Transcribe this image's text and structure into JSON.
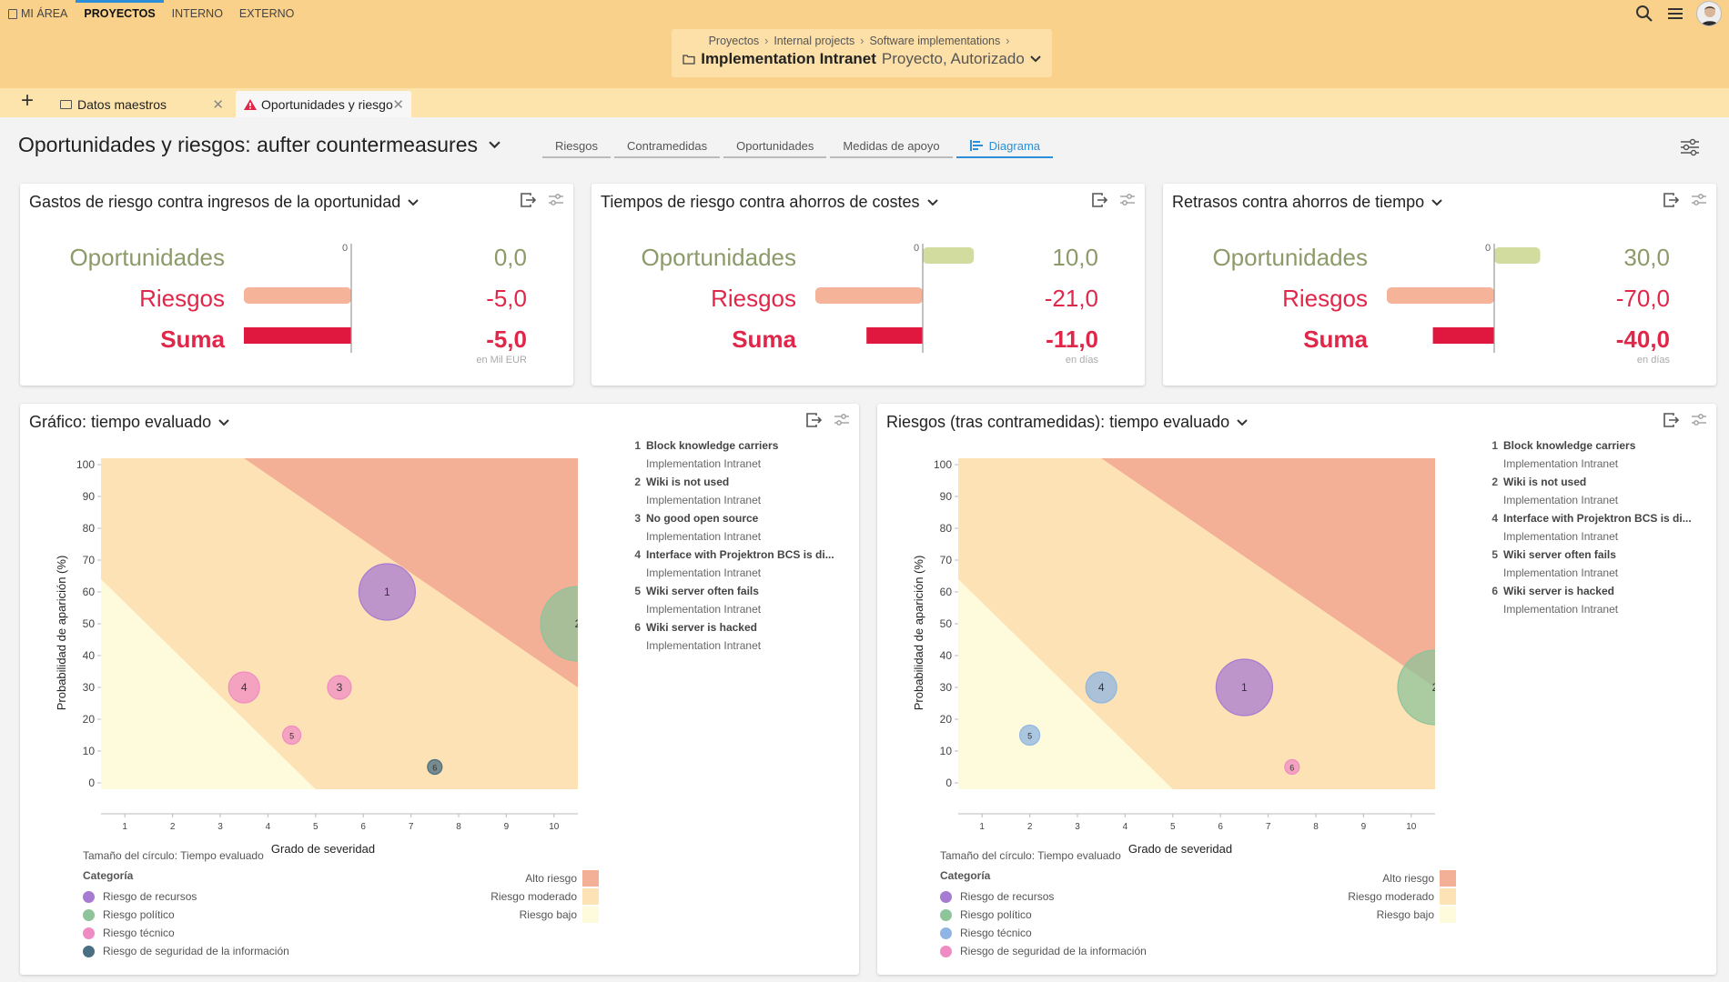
{
  "nav": {
    "items": [
      {
        "label": "MI ÁREA",
        "active": false
      },
      {
        "label": "PROYECTOS",
        "active": true
      },
      {
        "label": "INTERNO",
        "active": false
      },
      {
        "label": "EXTERNO",
        "active": false
      }
    ]
  },
  "context": {
    "breadcrumbs": [
      "Proyectos",
      "Internal projects",
      "Software implementations"
    ],
    "title": "Implementation Intranet",
    "subtitle": "Proyecto, Autorizado"
  },
  "doc_tabs": [
    {
      "label": "Datos maestros"
    },
    {
      "label": "Oportunidades y riesgo"
    }
  ],
  "page": {
    "title": "Oportunidades y riesgos: aufter countermeasures",
    "subtabs": [
      "Riesgos",
      "Contramedidas",
      "Oportunidades",
      "Medidas de apoyo",
      "Diagrama"
    ],
    "active_subtab": "Diagrama"
  },
  "colors": {
    "topbar": "#fad18a",
    "accent": "#2a8fd8",
    "opp": "#8c9a6a",
    "risk": "#e0274a",
    "opp_bar": "#d2dc9e",
    "risk_bar": "#f5b39a",
    "sum_bar": "#e0183f",
    "high": "#f3b096",
    "moderate": "#fde2b6",
    "low": "#fefadc"
  },
  "kpis": [
    {
      "title": "Gastos de riesgo contra ingresos de la oportunidad",
      "labels": {
        "opp": "Oportunidades",
        "risk": "Riesgos",
        "sum": "Suma"
      },
      "zero_label": "0",
      "values": {
        "opp": "0,0",
        "risk": "-5,0",
        "sum": "-5,0"
      },
      "numbers": {
        "opp": 0,
        "risk": -5,
        "sum": -5,
        "max": 5
      },
      "unit": "en Mil EUR"
    },
    {
      "title": "Tiempos de riesgo contra ahorros de costes",
      "labels": {
        "opp": "Oportunidades",
        "risk": "Riesgos",
        "sum": "Suma"
      },
      "zero_label": "0",
      "values": {
        "opp": "10,0",
        "risk": "-21,0",
        "sum": "-11,0"
      },
      "numbers": {
        "opp": 10,
        "risk": -21,
        "sum": -11,
        "max": 21
      },
      "unit": "en días"
    },
    {
      "title": "Retrasos contra ahorros de tiempo",
      "labels": {
        "opp": "Oportunidades",
        "risk": "Riesgos",
        "sum": "Suma"
      },
      "zero_label": "0",
      "values": {
        "opp": "30,0",
        "risk": "-70,0",
        "sum": "-40,0"
      },
      "numbers": {
        "opp": 30,
        "risk": -70,
        "sum": -40,
        "max": 70
      },
      "unit": "en días"
    }
  ],
  "charts": [
    {
      "title": "Gráfico: tiempo evaluado",
      "list": [
        {
          "num": "1",
          "name": "Block knowledge carriers",
          "sub": "Implementation Intranet"
        },
        {
          "num": "2",
          "name": "Wiki is not used",
          "sub": "Implementation Intranet"
        },
        {
          "num": "3",
          "name": "No good open source",
          "sub": "Implementation Intranet"
        },
        {
          "num": "4",
          "name": "Interface with Projektron BCS is di...",
          "sub": "Implementation Intranet"
        },
        {
          "num": "5",
          "name": "Wiki server often fails",
          "sub": "Implementation Intranet"
        },
        {
          "num": "6",
          "name": "Wiki server is hacked",
          "sub": "Implementation Intranet"
        }
      ],
      "legend": {
        "circle_note": "Tamaño del círculo: Tiempo evaluado",
        "category_header": "Categoría",
        "categories": [
          {
            "name": "Riesgo de recursos",
            "color": "#a77bd1"
          },
          {
            "name": "Riesgo político",
            "color": "#8fc39a"
          },
          {
            "name": "Riesgo técnico",
            "color": "#ef8cc3"
          },
          {
            "name": "Riesgo de seguridad de la información",
            "color": "#4a6e82"
          }
        ],
        "risk_levels": [
          {
            "name": "Alto riesgo",
            "color": "#f3b096"
          },
          {
            "name": "Riesgo moderado",
            "color": "#fde2b6"
          },
          {
            "name": "Riesgo bajo",
            "color": "#fefadc"
          }
        ]
      },
      "chart_data": {
        "type": "scatter",
        "xlabel": "Grado de severidad",
        "ylabel": "Probabilidad de aparición (%)",
        "xticks": [
          1,
          2,
          3,
          4,
          5,
          6,
          7,
          8,
          9,
          10
        ],
        "yticks": [
          0,
          10,
          20,
          30,
          40,
          50,
          60,
          70,
          80,
          90,
          100
        ],
        "xlim": [
          0,
          10
        ],
        "ylim": [
          -2,
          102
        ],
        "points": [
          {
            "label": "1",
            "x": 6,
            "y": 60,
            "r": 31,
            "color": "#a77bd1"
          },
          {
            "label": "2",
            "x": 10,
            "y": 50,
            "r": 41,
            "color": "#8fc39a"
          },
          {
            "label": "3",
            "x": 5,
            "y": 30,
            "r": 13,
            "color": "#ef8cc3"
          },
          {
            "label": "4",
            "x": 3,
            "y": 30,
            "r": 17,
            "color": "#ef8cc3"
          },
          {
            "label": "5",
            "x": 4,
            "y": 15,
            "r": 10,
            "color": "#ef8cc3"
          },
          {
            "label": "6",
            "x": 7,
            "y": 5,
            "r": 8,
            "color": "#4a6e82"
          }
        ]
      }
    },
    {
      "title": "Riesgos (tras contramedidas): tiempo evaluado",
      "list": [
        {
          "num": "1",
          "name": "Block knowledge carriers",
          "sub": "Implementation Intranet"
        },
        {
          "num": "2",
          "name": "Wiki is not used",
          "sub": "Implementation Intranet"
        },
        {
          "num": "4",
          "name": "Interface with Projektron BCS is di...",
          "sub": "Implementation Intranet"
        },
        {
          "num": "5",
          "name": "Wiki server often fails",
          "sub": "Implementation Intranet"
        },
        {
          "num": "6",
          "name": "Wiki server is hacked",
          "sub": "Implementation Intranet"
        }
      ],
      "legend": {
        "circle_note": "Tamaño del círculo: Tiempo evaluado",
        "category_header": "Categoría",
        "categories": [
          {
            "name": "Riesgo de recursos",
            "color": "#a77bd1"
          },
          {
            "name": "Riesgo político",
            "color": "#8fc39a"
          },
          {
            "name": "Riesgo técnico",
            "color": "#8fb6e2"
          },
          {
            "name": "Riesgo de seguridad de la información",
            "color": "#ef8cc3"
          }
        ],
        "risk_levels": [
          {
            "name": "Alto riesgo",
            "color": "#f3b096"
          },
          {
            "name": "Riesgo moderado",
            "color": "#fde2b6"
          },
          {
            "name": "Riesgo bajo",
            "color": "#fefadc"
          }
        ]
      },
      "chart_data": {
        "type": "scatter",
        "xlabel": "Grado de severidad",
        "ylabel": "Probabilidad de aparición (%)",
        "xticks": [
          1,
          2,
          3,
          4,
          5,
          6,
          7,
          8,
          9,
          10
        ],
        "yticks": [
          0,
          10,
          20,
          30,
          40,
          50,
          60,
          70,
          80,
          90,
          100
        ],
        "xlim": [
          0,
          10
        ],
        "ylim": [
          -2,
          102
        ],
        "points": [
          {
            "label": "1",
            "x": 6,
            "y": 30,
            "r": 31,
            "color": "#a77bd1"
          },
          {
            "label": "2",
            "x": 10,
            "y": 30,
            "r": 41,
            "color": "#8fc39a"
          },
          {
            "label": "4",
            "x": 3,
            "y": 30,
            "r": 17,
            "color": "#8fb6e2"
          },
          {
            "label": "5",
            "x": 1.5,
            "y": 15,
            "r": 11,
            "color": "#8fb6e2"
          },
          {
            "label": "6",
            "x": 7,
            "y": 5,
            "r": 8,
            "color": "#ef8cc3"
          }
        ]
      }
    }
  ]
}
